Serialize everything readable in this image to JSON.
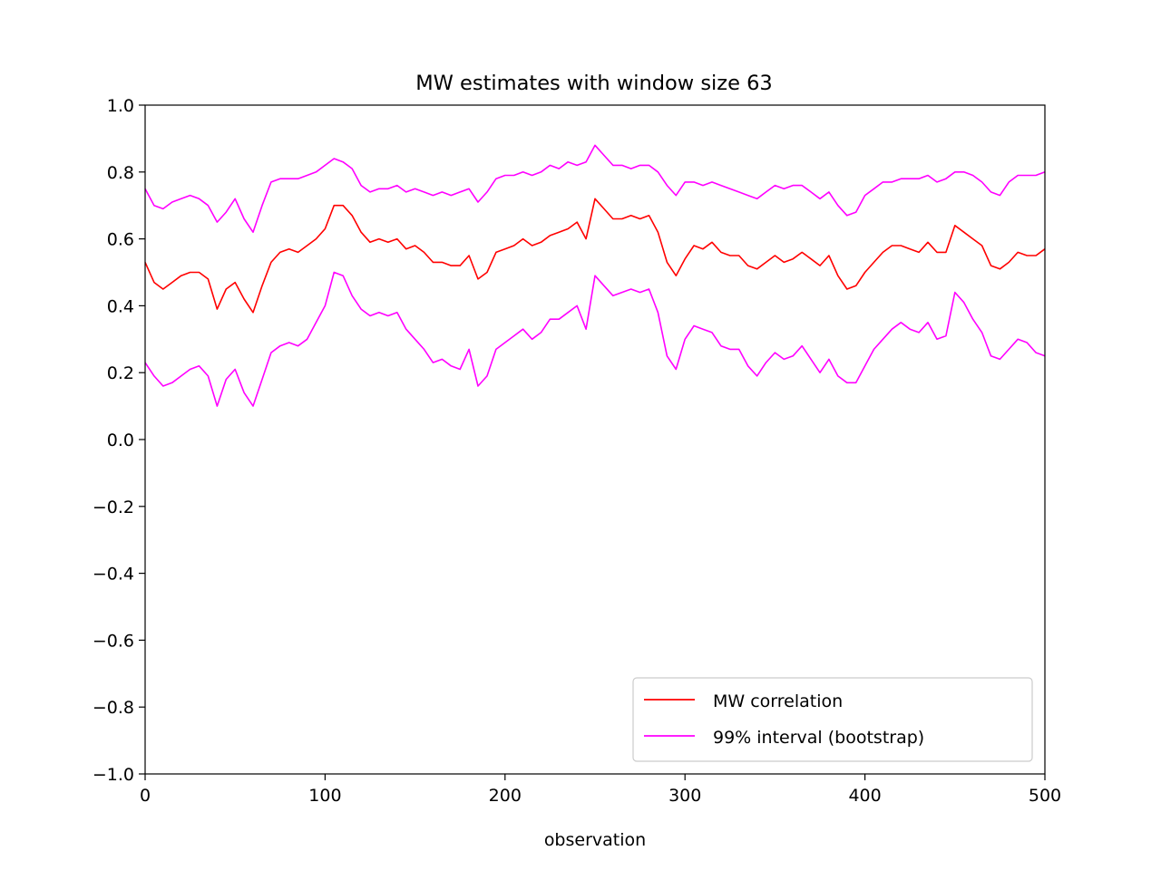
{
  "chart_data": {
    "type": "line",
    "title": "MW estimates with window size 63",
    "xlabel": "observation",
    "ylabel": "",
    "xlim": [
      0,
      500
    ],
    "ylim": [
      -1.0,
      1.0
    ],
    "xticks": [
      "0",
      "100",
      "200",
      "300",
      "400",
      "500"
    ],
    "yticks": [
      "−1.0",
      "−0.8",
      "−0.6",
      "−0.4",
      "−0.2",
      "0.0",
      "0.2",
      "0.4",
      "0.6",
      "0.8",
      "1.0"
    ],
    "grid": false,
    "legend_position": "lower-right",
    "legend": [
      "MW correlation",
      "99% interval (bootstrap)"
    ],
    "x": [
      0,
      5,
      10,
      15,
      20,
      25,
      30,
      35,
      40,
      45,
      50,
      55,
      60,
      65,
      70,
      75,
      80,
      85,
      90,
      95,
      100,
      105,
      110,
      115,
      120,
      125,
      130,
      135,
      140,
      145,
      150,
      155,
      160,
      165,
      170,
      175,
      180,
      185,
      190,
      195,
      200,
      205,
      210,
      215,
      220,
      225,
      230,
      235,
      240,
      245,
      250,
      255,
      260,
      265,
      270,
      275,
      280,
      285,
      290,
      295,
      300,
      305,
      310,
      315,
      320,
      325,
      330,
      335,
      340,
      345,
      350,
      355,
      360,
      365,
      370,
      375,
      380,
      385,
      390,
      395,
      400,
      405,
      410,
      415,
      420,
      425,
      430,
      435,
      440,
      445,
      450,
      455,
      460,
      465,
      470,
      475,
      480,
      485,
      490,
      495,
      500
    ],
    "series": [
      {
        "name": "MW correlation",
        "color": "#ff0000",
        "values": [
          0.53,
          0.47,
          0.45,
          0.47,
          0.49,
          0.5,
          0.5,
          0.48,
          0.39,
          0.45,
          0.47,
          0.42,
          0.38,
          0.46,
          0.53,
          0.56,
          0.57,
          0.56,
          0.58,
          0.6,
          0.63,
          0.7,
          0.7,
          0.67,
          0.62,
          0.59,
          0.6,
          0.59,
          0.6,
          0.57,
          0.58,
          0.56,
          0.53,
          0.53,
          0.52,
          0.52,
          0.55,
          0.48,
          0.5,
          0.56,
          0.57,
          0.58,
          0.6,
          0.58,
          0.59,
          0.61,
          0.62,
          0.63,
          0.65,
          0.6,
          0.72,
          0.69,
          0.66,
          0.66,
          0.67,
          0.66,
          0.67,
          0.62,
          0.53,
          0.49,
          0.54,
          0.58,
          0.57,
          0.59,
          0.56,
          0.55,
          0.55,
          0.52,
          0.51,
          0.53,
          0.55,
          0.53,
          0.54,
          0.56,
          0.54,
          0.52,
          0.55,
          0.49,
          0.45,
          0.46,
          0.5,
          0.53,
          0.56,
          0.58,
          0.58,
          0.57,
          0.56,
          0.59,
          0.56,
          0.56,
          0.64,
          0.62,
          0.6,
          0.58,
          0.52,
          0.51,
          0.53,
          0.56,
          0.55,
          0.55,
          0.57
        ]
      },
      {
        "name": "99% interval (bootstrap)",
        "color": "#ff00ff",
        "values": [
          0.75,
          0.7,
          0.69,
          0.71,
          0.72,
          0.73,
          0.72,
          0.7,
          0.65,
          0.68,
          0.72,
          0.66,
          0.62,
          0.7,
          0.77,
          0.78,
          0.78,
          0.78,
          0.79,
          0.8,
          0.82,
          0.84,
          0.83,
          0.81,
          0.76,
          0.74,
          0.75,
          0.75,
          0.76,
          0.74,
          0.75,
          0.74,
          0.73,
          0.74,
          0.73,
          0.74,
          0.75,
          0.71,
          0.74,
          0.78,
          0.79,
          0.79,
          0.8,
          0.79,
          0.8,
          0.82,
          0.81,
          0.83,
          0.82,
          0.83,
          0.88,
          0.85,
          0.82,
          0.82,
          0.81,
          0.82,
          0.82,
          0.8,
          0.76,
          0.73,
          0.77,
          0.77,
          0.76,
          0.77,
          0.76,
          0.75,
          0.74,
          0.73,
          0.72,
          0.74,
          0.76,
          0.75,
          0.76,
          0.76,
          0.74,
          0.72,
          0.74,
          0.7,
          0.67,
          0.68,
          0.73,
          0.75,
          0.77,
          0.77,
          0.78,
          0.78,
          0.78,
          0.79,
          0.77,
          0.78,
          0.8,
          0.8,
          0.79,
          0.77,
          0.74,
          0.73,
          0.77,
          0.79,
          0.79,
          0.79,
          0.8
        ]
      },
      {
        "name": "99% interval (bootstrap)",
        "color": "#ff00ff",
        "values": [
          0.23,
          0.19,
          0.16,
          0.17,
          0.19,
          0.21,
          0.22,
          0.19,
          0.1,
          0.18,
          0.21,
          0.14,
          0.1,
          0.18,
          0.26,
          0.28,
          0.29,
          0.28,
          0.3,
          0.35,
          0.4,
          0.5,
          0.49,
          0.43,
          0.39,
          0.37,
          0.38,
          0.37,
          0.38,
          0.33,
          0.3,
          0.27,
          0.23,
          0.24,
          0.22,
          0.21,
          0.27,
          0.16,
          0.19,
          0.27,
          0.29,
          0.31,
          0.33,
          0.3,
          0.32,
          0.36,
          0.36,
          0.38,
          0.4,
          0.33,
          0.49,
          0.46,
          0.43,
          0.44,
          0.45,
          0.44,
          0.45,
          0.38,
          0.25,
          0.21,
          0.3,
          0.34,
          0.33,
          0.32,
          0.28,
          0.27,
          0.27,
          0.22,
          0.19,
          0.23,
          0.26,
          0.24,
          0.25,
          0.28,
          0.24,
          0.2,
          0.24,
          0.19,
          0.17,
          0.17,
          0.22,
          0.27,
          0.3,
          0.33,
          0.35,
          0.33,
          0.32,
          0.35,
          0.3,
          0.31,
          0.44,
          0.41,
          0.36,
          0.32,
          0.25,
          0.24,
          0.27,
          0.3,
          0.29,
          0.26,
          0.25
        ]
      }
    ]
  }
}
